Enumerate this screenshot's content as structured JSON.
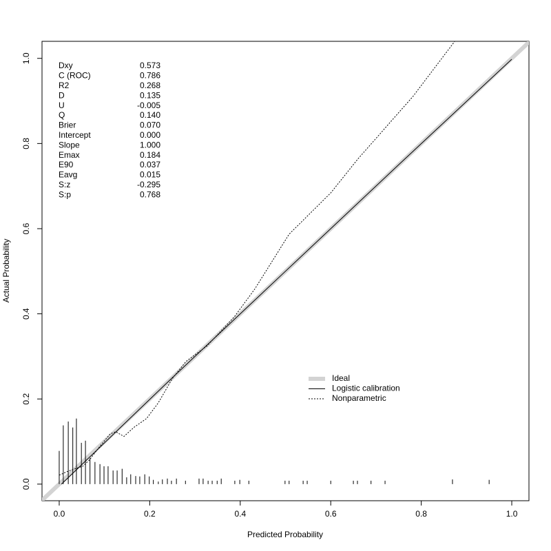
{
  "chart_data": {
    "type": "line",
    "xlabel": "Predicted Probability",
    "ylabel": "Actual Probability",
    "xlim": [
      -0.038,
      1.038
    ],
    "ylim": [
      -0.039,
      1.04
    ],
    "xticks": [
      {
        "value": 0,
        "label": "0.0"
      },
      0.2,
      0.4,
      0.6,
      0.8,
      {
        "value": 1,
        "label": "1.0"
      }
    ],
    "yticks": [
      {
        "value": 0,
        "label": "0.0"
      },
      0.2,
      0.4,
      0.6,
      0.8,
      {
        "value": 1,
        "label": "1.0"
      }
    ],
    "series": [
      {
        "name": "Ideal",
        "color": "#d3d3d3",
        "width": 6,
        "dash": "none",
        "x": [
          -0.04,
          1.04
        ],
        "values": [
          -0.04,
          1.04
        ]
      },
      {
        "name": "Logistic calibration",
        "color": "#000000",
        "width": 1,
        "dash": "none",
        "x": [
          0.005,
          0.25,
          0.5,
          0.75,
          1.0
        ],
        "values": [
          0.0,
          0.25,
          0.5,
          0.75,
          0.998
        ]
      },
      {
        "name": "Nonparametric",
        "color": "#000000",
        "width": 1,
        "dash": "2,2",
        "x": [
          0,
          0.021,
          0.052,
          0.067,
          0.09,
          0.113,
          0.125,
          0.143,
          0.166,
          0.193,
          0.219,
          0.25,
          0.28,
          0.326,
          0.387,
          0.432,
          0.508,
          0.6,
          0.661,
          0.782,
          0.874
        ],
        "values": [
          0.021,
          0.031,
          0.042,
          0.057,
          0.089,
          0.118,
          0.123,
          0.112,
          0.134,
          0.154,
          0.191,
          0.248,
          0.288,
          0.324,
          0.393,
          0.458,
          0.587,
          0.684,
          0.765,
          0.911,
          1.04
        ]
      }
    ],
    "spikes": {
      "x": [
        0,
        0.009,
        0.02,
        0.03,
        0.038,
        0.049,
        0.058,
        0.068,
        0.079,
        0.09,
        0.099,
        0.108,
        0.119,
        0.128,
        0.139,
        0.149,
        0.158,
        0.169,
        0.178,
        0.189,
        0.199,
        0.208,
        0.219,
        0.228,
        0.239,
        0.248,
        0.259,
        0.279,
        0.309,
        0.318,
        0.329,
        0.338,
        0.349,
        0.358,
        0.388,
        0.399,
        0.419,
        0.499,
        0.508,
        0.539,
        0.548,
        0.6,
        0.65,
        0.659,
        0.689,
        0.72,
        0.869,
        0.95
      ],
      "values": [
        0.078,
        0.138,
        0.147,
        0.133,
        0.154,
        0.097,
        0.102,
        0.061,
        0.052,
        0.047,
        0.042,
        0.042,
        0.032,
        0.032,
        0.036,
        0.016,
        0.023,
        0.019,
        0.018,
        0.023,
        0.018,
        0.01,
        0.006,
        0.011,
        0.013,
        0.008,
        0.013,
        0.008,
        0.013,
        0.013,
        0.008,
        0.008,
        0.008,
        0.013,
        0.008,
        0.01,
        0.008,
        0.008,
        0.008,
        0.008,
        0.008,
        0.008,
        0.008,
        0.008,
        0.008,
        0.008,
        0.011,
        0.01
      ]
    },
    "stats": [
      {
        "label": "Dxy",
        "value": "0.573"
      },
      {
        "label": "C (ROC)",
        "value": "0.786"
      },
      {
        "label": "R2",
        "value": "0.268"
      },
      {
        "label": "D",
        "value": "0.135"
      },
      {
        "label": "U",
        "value": "-0.005"
      },
      {
        "label": "Q",
        "value": "0.140"
      },
      {
        "label": "Brier",
        "value": "0.070"
      },
      {
        "label": "Intercept",
        "value": "0.000"
      },
      {
        "label": "Slope",
        "value": "1.000"
      },
      {
        "label": "Emax",
        "value": "0.184"
      },
      {
        "label": "E90",
        "value": "0.037"
      },
      {
        "label": "Eavg",
        "value": "0.015"
      },
      {
        "label": "S:z",
        "value": "-0.295"
      },
      {
        "label": "S:p",
        "value": "0.768"
      }
    ]
  }
}
